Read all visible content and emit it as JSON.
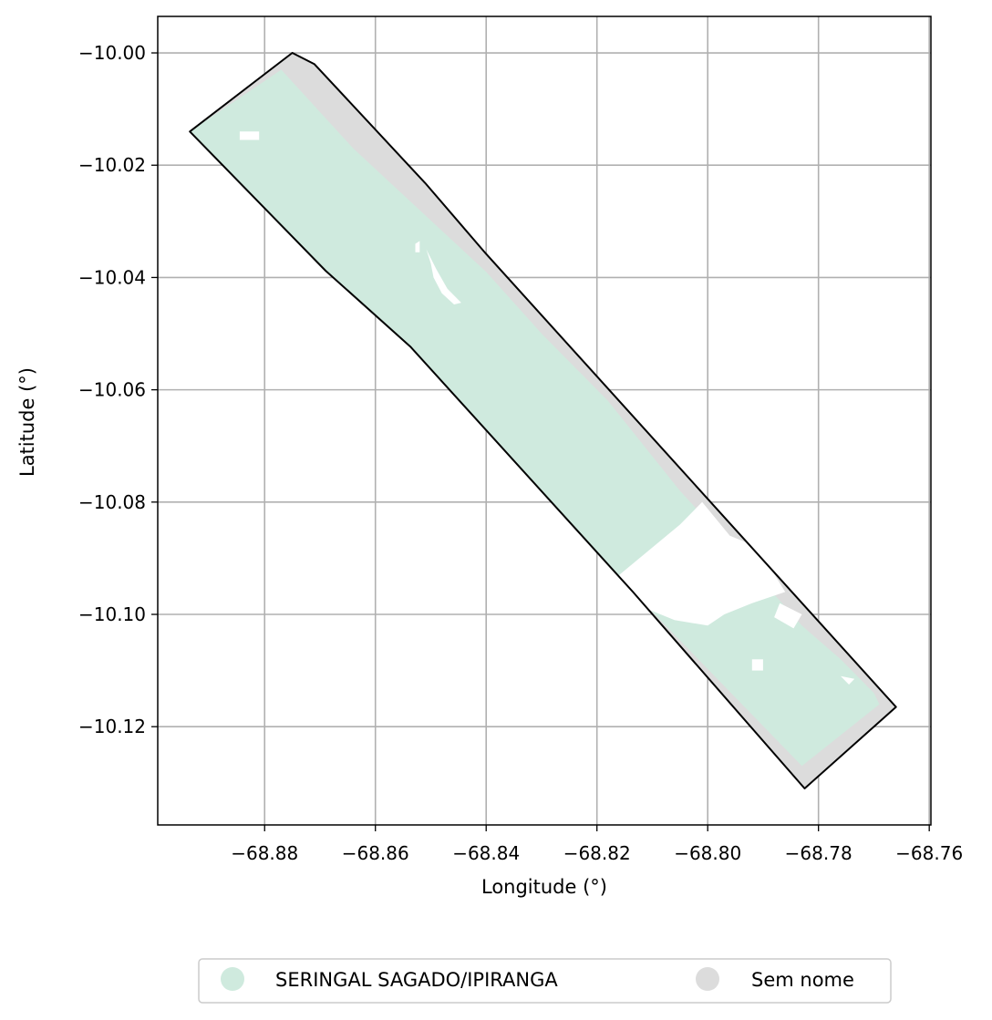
{
  "chart_data": {
    "type": "map",
    "xlabel": "Longitude (°)",
    "ylabel": "Latitude (°)",
    "xlim": [
      -68.8993,
      -68.7597
    ],
    "ylim": [
      -10.1375,
      -9.9935
    ],
    "xticks": [
      -68.88,
      -68.86,
      -68.84,
      -68.82,
      -68.8,
      -68.78,
      -68.76
    ],
    "xtick_labels": [
      "−68.88",
      "−68.86",
      "−68.84",
      "−68.82",
      "−68.80",
      "−68.78",
      "−68.76"
    ],
    "yticks": [
      -10.0,
      -10.02,
      -10.04,
      -10.06,
      -10.08,
      -10.1,
      -10.12
    ],
    "ytick_labels": [
      "−10.00",
      "−10.02",
      "−10.04",
      "−10.06",
      "−10.08",
      "−10.10",
      "−10.12"
    ],
    "grid": true,
    "legend": {
      "placement": "bottom-center",
      "entries": [
        {
          "label": "SERINGAL SAGADO/IPIRANGA",
          "color": "#cfeade"
        },
        {
          "label": "Sem nome",
          "color": "#dcdcdc"
        }
      ]
    },
    "boundary": [
      [
        -68.875,
        -10.0
      ],
      [
        -68.871,
        -10.002
      ],
      [
        -68.851,
        -10.0232
      ],
      [
        -68.84,
        -10.0358
      ],
      [
        -68.766,
        -10.1165
      ],
      [
        -68.7825,
        -10.131
      ],
      [
        -68.8135,
        -10.096
      ],
      [
        -68.8537,
        -10.0523
      ],
      [
        -68.869,
        -10.0388
      ],
      [
        -68.8935,
        -10.014
      ]
    ],
    "layers": [
      {
        "name": "Sem nome",
        "color": "#dcdcdc",
        "polygon": [
          [
            -68.875,
            -10.0
          ],
          [
            -68.871,
            -10.002
          ],
          [
            -68.851,
            -10.0232
          ],
          [
            -68.84,
            -10.0358
          ],
          [
            -68.766,
            -10.1165
          ],
          [
            -68.7825,
            -10.131
          ],
          [
            -68.8135,
            -10.096
          ],
          [
            -68.8537,
            -10.0523
          ],
          [
            -68.869,
            -10.0388
          ],
          [
            -68.8935,
            -10.014
          ]
        ]
      },
      {
        "name": "SERINGAL SAGADO/IPIRANGA",
        "color": "#cfeade",
        "polygon": [
          [
            -68.877,
            -10.003
          ],
          [
            -68.864,
            -10.017
          ],
          [
            -68.84,
            -10.039
          ],
          [
            -68.83,
            -10.05
          ],
          [
            -68.818,
            -10.062
          ],
          [
            -68.805,
            -10.078
          ],
          [
            -68.792,
            -10.092
          ],
          [
            -68.783,
            -10.102
          ],
          [
            -68.776,
            -10.108
          ],
          [
            -68.77,
            -10.114
          ],
          [
            -68.769,
            -10.116
          ],
          [
            -68.783,
            -10.127
          ],
          [
            -68.8135,
            -10.096
          ],
          [
            -68.8537,
            -10.0523
          ],
          [
            -68.869,
            -10.0388
          ],
          [
            -68.8935,
            -10.014
          ]
        ]
      }
    ],
    "holes": [
      [
        [
          -68.816,
          -10.093
        ],
        [
          -68.805,
          -10.084
        ],
        [
          -68.801,
          -10.08
        ],
        [
          -68.796,
          -10.086
        ],
        [
          -68.791,
          -10.088
        ],
        [
          -68.786,
          -10.096
        ],
        [
          -68.792,
          -10.098
        ],
        [
          -68.797,
          -10.1
        ],
        [
          -68.8,
          -10.102
        ],
        [
          -68.806,
          -10.101
        ],
        [
          -68.811,
          -10.099
        ],
        [
          -68.815,
          -10.097
        ]
      ],
      [
        [
          -68.8508,
          -10.035
        ],
        [
          -68.849,
          -10.0385
        ],
        [
          -68.847,
          -10.042
        ],
        [
          -68.8445,
          -10.0445
        ],
        [
          -68.8458,
          -10.0448
        ],
        [
          -68.848,
          -10.0428
        ],
        [
          -68.8495,
          -10.04
        ],
        [
          -68.85,
          -10.0375
        ]
      ],
      [
        [
          -68.8845,
          -10.014
        ],
        [
          -68.881,
          -10.014
        ],
        [
          -68.881,
          -10.0155
        ],
        [
          -68.8845,
          -10.0155
        ]
      ],
      [
        [
          -68.792,
          -10.108
        ],
        [
          -68.79,
          -10.108
        ],
        [
          -68.79,
          -10.11
        ],
        [
          -68.792,
          -10.11
        ]
      ],
      [
        [
          -68.787,
          -10.098
        ],
        [
          -68.783,
          -10.1
        ],
        [
          -68.7845,
          -10.1025
        ],
        [
          -68.788,
          -10.1005
        ]
      ],
      [
        [
          -68.776,
          -10.111
        ],
        [
          -68.7745,
          -10.1125
        ],
        [
          -68.7735,
          -10.1115
        ]
      ],
      [
        [
          -68.8528,
          -10.034
        ],
        [
          -68.852,
          -10.0335
        ],
        [
          -68.852,
          -10.0355
        ],
        [
          -68.8528,
          -10.0355
        ]
      ]
    ]
  }
}
